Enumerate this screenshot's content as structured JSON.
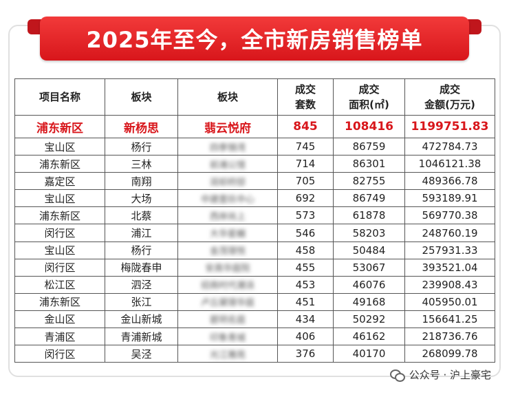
{
  "title": "2025年至今，全市新房销售榜单",
  "headers": [
    "项目名称",
    "板块",
    "板块",
    "成交\n套数",
    "成交\n面积(㎡)",
    "成交\n金额(万元)"
  ],
  "highlight": [
    "浦东新区",
    "新杨思",
    "翡云悦府",
    "845",
    "108416",
    "1199751.83"
  ],
  "rows": [
    [
      "宝山区",
      "杨行",
      "四季锦湾",
      "745",
      "86759",
      "472784.73"
    ],
    [
      "浦东新区",
      "三林",
      "前滩公馆",
      "714",
      "86301",
      "1046121.38"
    ],
    [
      "嘉定区",
      "南翔",
      "润却府邸",
      "705",
      "82755",
      "489366.78"
    ],
    [
      "宝山区",
      "大场",
      "中建壹玖中心",
      "692",
      "86749",
      "593189.91"
    ],
    [
      "浦东新区",
      "北蔡",
      "西岸尚上",
      "573",
      "61878",
      "569770.38"
    ],
    [
      "闵行区",
      "浦江",
      "大华星樾",
      "546",
      "58203",
      "248760.19"
    ],
    [
      "宝山区",
      "杨行",
      "金茂璟悦",
      "458",
      "50484",
      "257931.33"
    ],
    [
      "闵行区",
      "梅陇春申",
      "安高华庭院",
      "455",
      "53067",
      "393521.04"
    ],
    [
      "松江区",
      "泗泾",
      "招商时代潮派",
      "453",
      "46076",
      "239908.43"
    ],
    [
      "浦东新区",
      "张江",
      "卢丘黛璟华庭",
      "451",
      "49168",
      "405950.01"
    ],
    [
      "金山区",
      "金山新城",
      "碧玥名庭",
      "434",
      "50292",
      "156641.25"
    ],
    [
      "青浦区",
      "青浦新城",
      "印象青城",
      "406",
      "46162",
      "218736.76"
    ],
    [
      "闵行区",
      "吴泾",
      "光江雅苑",
      "376",
      "40170",
      "268099.78"
    ]
  ],
  "footer": "公众号 · 沪上豪宅",
  "colors": {
    "accent": "#d8161b",
    "banner": "#e8262b"
  }
}
